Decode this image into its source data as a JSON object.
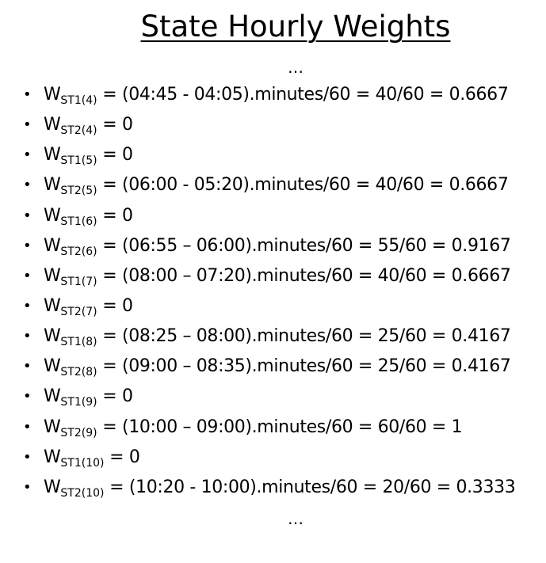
{
  "title": "State Hourly Weights",
  "ellipsis_top": "…",
  "ellipsis_bottom": "…",
  "bullet_char": "•",
  "weights": [
    {
      "symbol": "W",
      "subscript": "ST1(4)",
      "expression": " = (04:45 - 04:05).minutes/60 = 40/60 = 0.6667"
    },
    {
      "symbol": "W",
      "subscript": "ST2(4)",
      "expression": " = 0"
    },
    {
      "symbol": "W",
      "subscript": "ST1(5)",
      "expression": " = 0"
    },
    {
      "symbol": "W",
      "subscript": "ST2(5)",
      "expression": " = (06:00 - 05:20).minutes/60 = 40/60 = 0.6667"
    },
    {
      "symbol": "W",
      "subscript": "ST1(6)",
      "expression": " = 0"
    },
    {
      "symbol": "W",
      "subscript": "ST2(6)",
      "expression": " = (06:55 – 06:00).minutes/60 = 55/60 = 0.9167"
    },
    {
      "symbol": "W",
      "subscript": "ST1(7)",
      "expression": " = (08:00 – 07:20).minutes/60 = 40/60 = 0.6667"
    },
    {
      "symbol": "W",
      "subscript": "ST2(7)",
      "expression": " = 0"
    },
    {
      "symbol": "W",
      "subscript": "ST1(8)",
      "expression": " = (08:25 – 08:00).minutes/60 = 25/60 = 0.4167"
    },
    {
      "symbol": "W",
      "subscript": "ST2(8)",
      "expression": " = (09:00 – 08:35).minutes/60 = 25/60 = 0.4167"
    },
    {
      "symbol": "W",
      "subscript": "ST1(9)",
      "expression": " = 0"
    },
    {
      "symbol": "W",
      "subscript": "ST2(9)",
      "expression": " = (10:00 – 09:00).minutes/60 = 60/60 = 1"
    },
    {
      "symbol": "W",
      "subscript": "ST1(10)",
      "expression": " = 0"
    },
    {
      "symbol": "W",
      "subscript": "ST2(10)",
      "expression": " = (10:20 -  10:00).minutes/60 = 20/60 = 0.3333"
    }
  ]
}
